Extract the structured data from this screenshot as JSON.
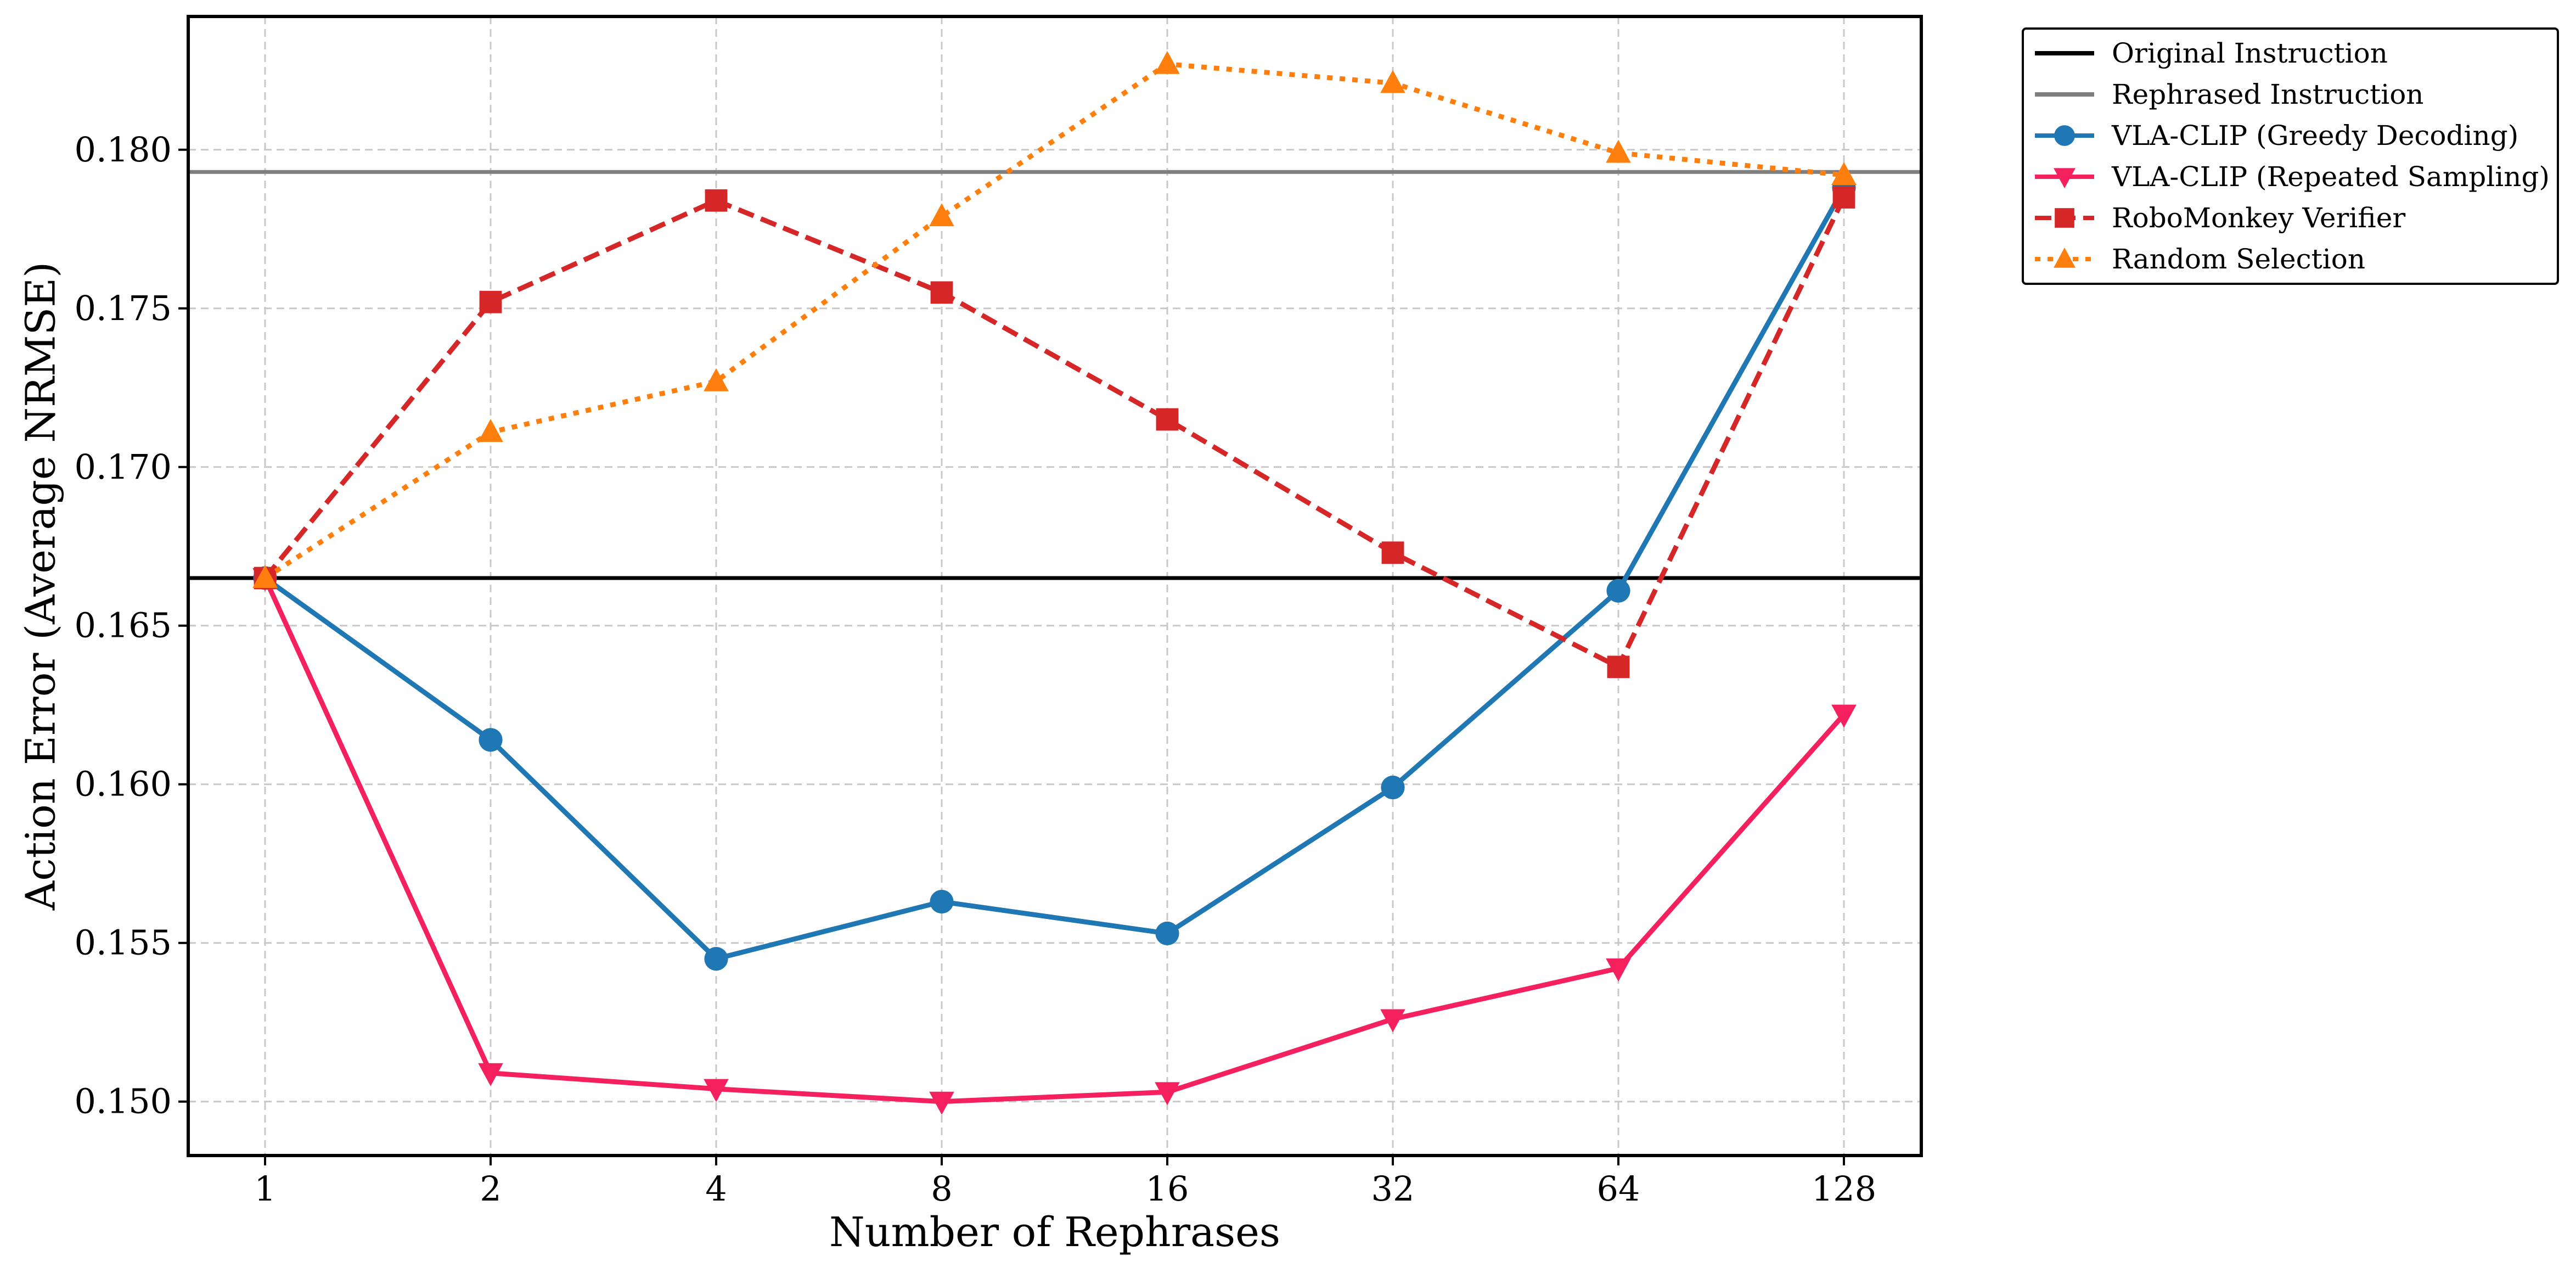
{
  "chart_data": {
    "type": "line",
    "xlabel": "Number of Rephrases",
    "ylabel": "Action Error (Average NRMSE)",
    "categories": [
      "1",
      "2",
      "4",
      "8",
      "16",
      "32",
      "64",
      "128"
    ],
    "ylim": [
      0.1483,
      0.1842
    ],
    "yticks": [
      "0.150",
      "0.155",
      "0.160",
      "0.165",
      "0.170",
      "0.175",
      "0.180"
    ],
    "grid": true,
    "legend_position": "outside-top-right",
    "reference_lines": [
      {
        "name": "Original Instruction",
        "value": 0.1665,
        "color": "#000000"
      },
      {
        "name": "Rephrased Instruction",
        "value": 0.1793,
        "color": "#7f7f7f"
      }
    ],
    "series": [
      {
        "name": "VLA-CLIP (Greedy Decoding)",
        "color": "#1f77b4",
        "marker": "circle",
        "dash": "solid",
        "values": [
          0.1665,
          0.1614,
          0.1545,
          0.1563,
          0.1553,
          0.1599,
          0.1661,
          0.1788
        ]
      },
      {
        "name": "VLA-CLIP (Repeated Sampling)",
        "color": "#f5215e",
        "marker": "triangle-down",
        "dash": "solid",
        "values": [
          0.1665,
          0.1509,
          0.1504,
          0.15,
          0.1503,
          0.1526,
          0.1542,
          0.1622
        ]
      },
      {
        "name": "RoboMonkey Verifier",
        "color": "#d62728",
        "marker": "square",
        "dash": "dashed",
        "values": [
          0.1665,
          0.1752,
          0.1784,
          0.1755,
          0.1715,
          0.1673,
          0.1637,
          0.1785
        ]
      },
      {
        "name": "Random Selection",
        "color": "#ff7f0e",
        "marker": "triangle-up",
        "dash": "dotted",
        "values": [
          0.1665,
          0.1711,
          0.1727,
          0.1779,
          0.1827,
          0.1821,
          0.1799,
          0.1792
        ]
      }
    ]
  }
}
